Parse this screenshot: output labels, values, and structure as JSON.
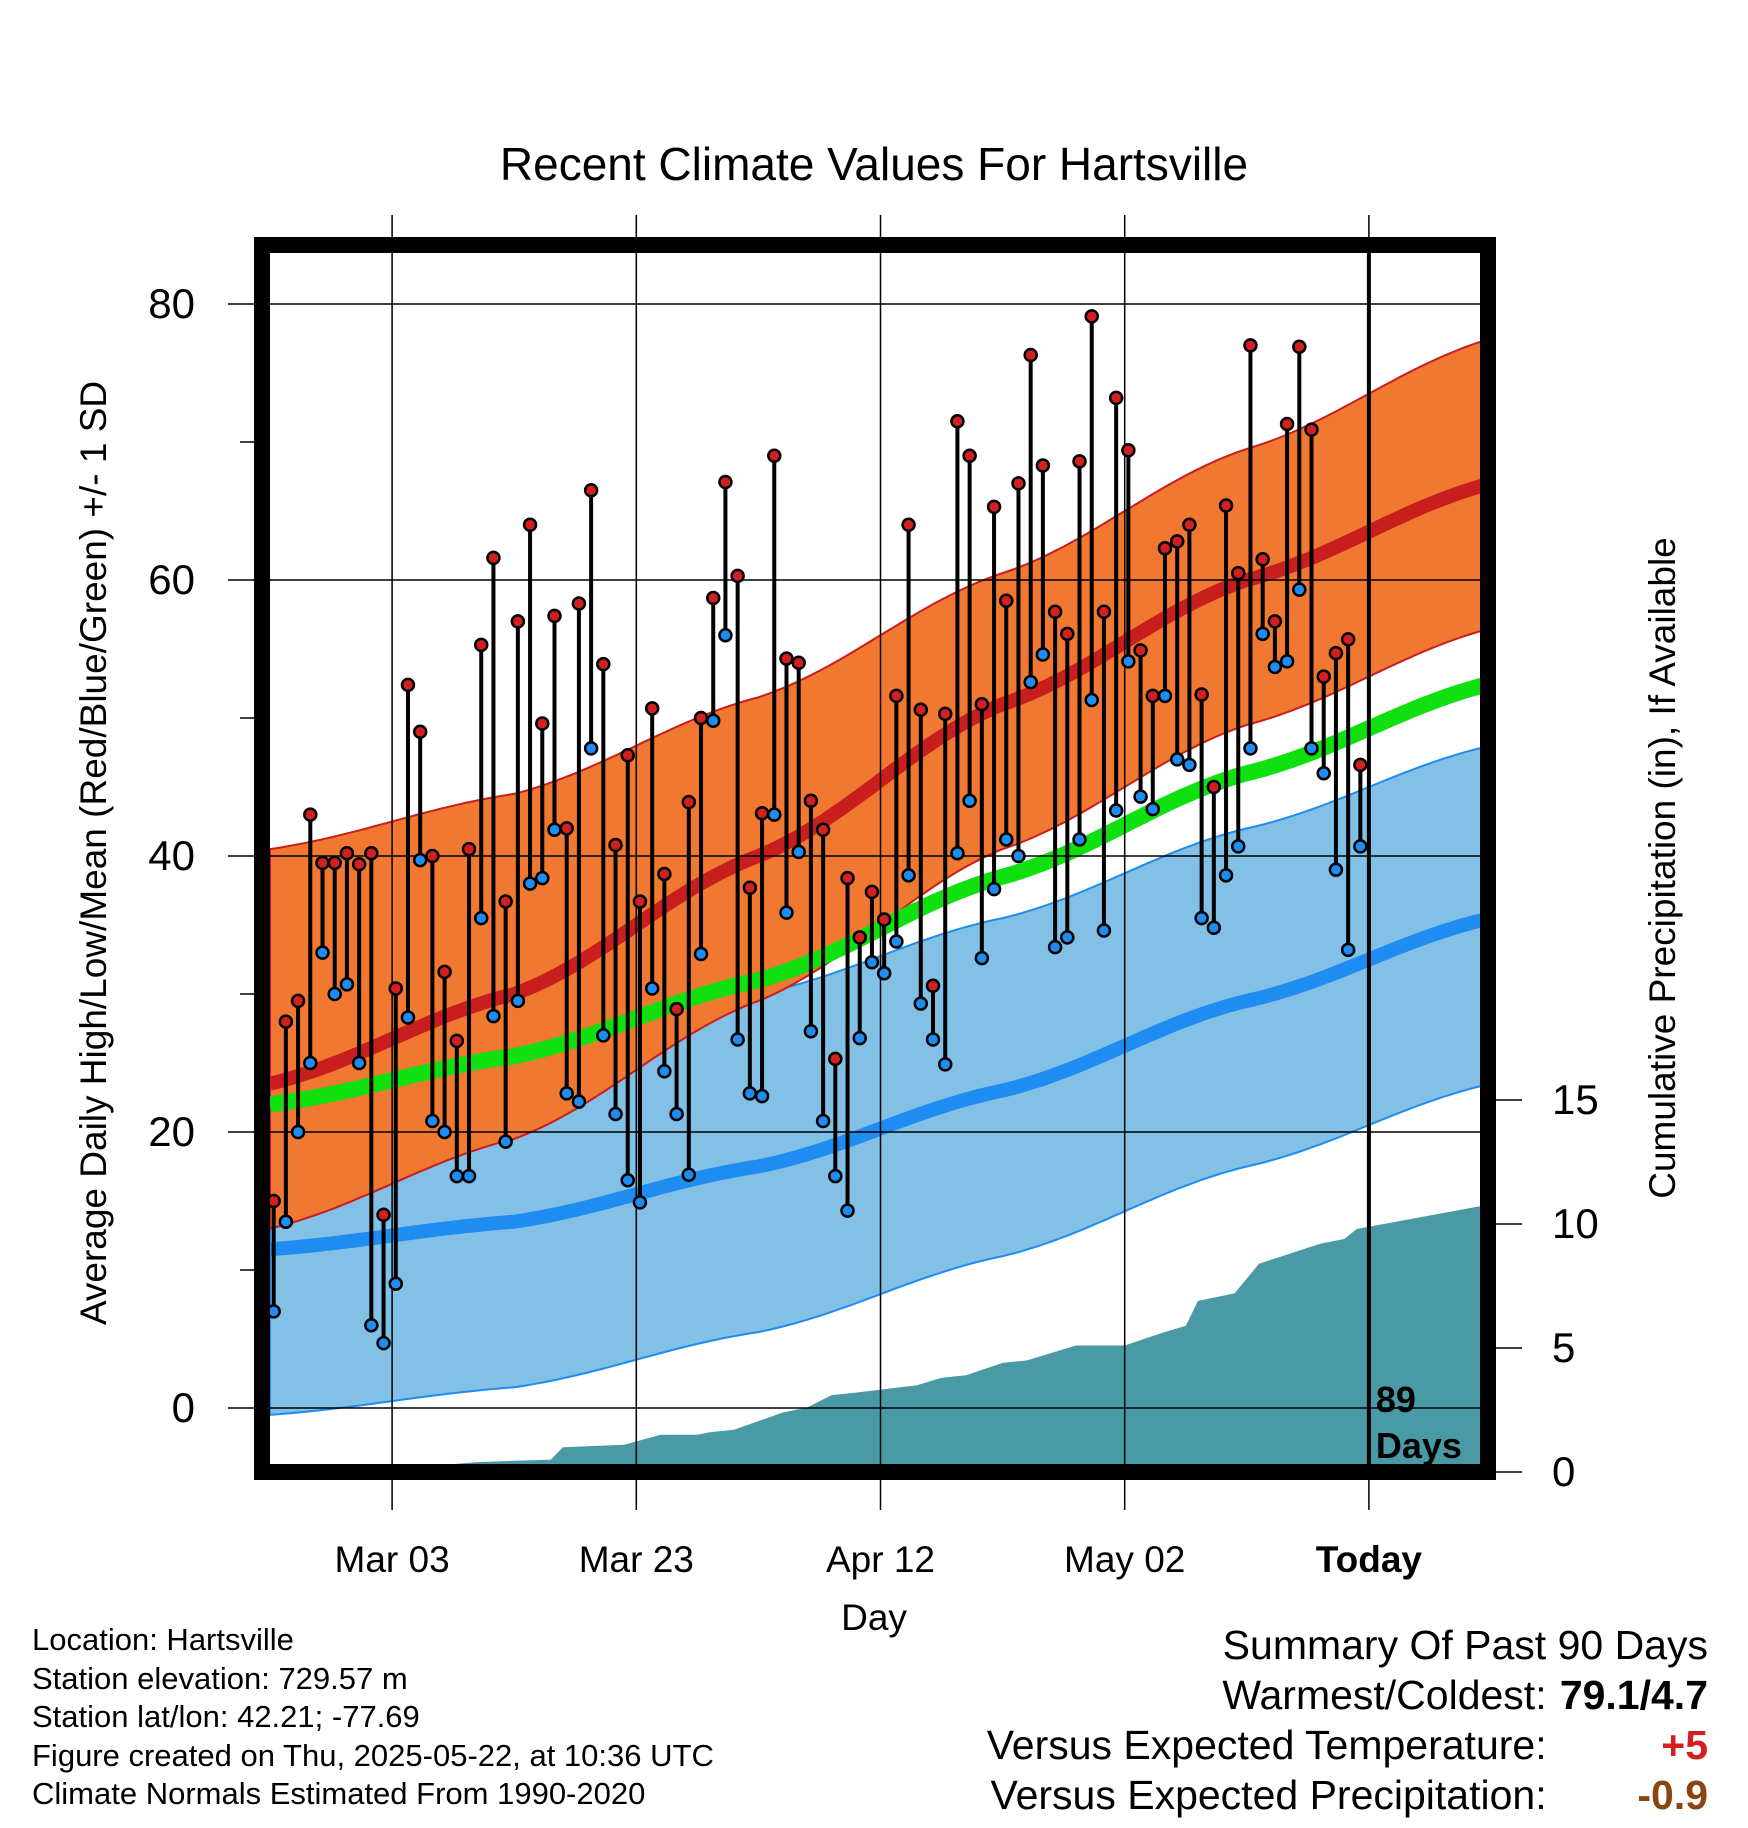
{
  "chart_data": {
    "type": "line",
    "title": "Recent Climate Values For Hartsville",
    "xlabel": "Day",
    "ylabel": "Average Daily High/Low/Mean (Red/Blue/Green) +/- 1 SD",
    "y2label": "Cumulative Precipitation (in), If Available",
    "ylim": [
      -4.5,
      85
    ],
    "y2lim": [
      0,
      30
    ],
    "xlim": [
      -11,
      89
    ],
    "x_units": "days since start of period (day 79 = Mar 03 offset)",
    "x_tick_labels": [
      {
        "x": 10,
        "label": "Mar 03"
      },
      {
        "x": 30,
        "label": "Mar 23"
      },
      {
        "x": 50,
        "label": "Apr 12"
      },
      {
        "x": 70,
        "label": "May 02"
      },
      {
        "x": 90,
        "label": "Today"
      }
    ],
    "y_ticks": [
      0,
      20,
      40,
      60,
      80
    ],
    "y2_ticks": [
      0,
      5,
      10,
      15
    ],
    "grid": true,
    "today_marker": {
      "label_line1": "89",
      "label_line2": "Days"
    },
    "normals": {
      "x": [
        0,
        20,
        40,
        60,
        80,
        100
      ],
      "high_mean": [
        23.5,
        30,
        40,
        51,
        60,
        67
      ],
      "high_upper": [
        32,
        36,
        43,
        52,
        61,
        69
      ],
      "low_mean": [
        11.5,
        13.5,
        17.5,
        23,
        29.5,
        35.5
      ],
      "mean": [
        22,
        25.5,
        31,
        38.5,
        46,
        52.5
      ]
    },
    "observed": {
      "high": [
        15,
        28,
        29.5,
        43,
        39.5,
        39.5,
        40.2,
        39.4,
        40.2,
        14,
        30.4,
        52.4,
        49,
        40,
        31.6,
        26.6,
        40.5,
        55.3,
        61.6,
        36.7,
        57,
        64,
        49.6,
        57.4,
        42,
        58.3,
        66.5,
        53.9,
        40.8,
        47.3,
        36.7,
        50.7,
        38.7,
        28.9,
        43.9,
        50,
        58.7,
        67.1,
        60.3,
        37.7,
        43.1,
        69,
        54.3,
        54,
        44,
        41.9,
        25.3,
        38.4,
        34.1,
        37.4,
        35.4,
        51.6,
        64,
        50.6,
        30.6,
        50.3,
        71.5,
        69,
        51,
        65.3,
        58.5,
        67,
        76.3,
        68.3,
        57.7,
        56.1,
        68.6,
        79.1,
        57.7,
        73.2,
        69.4,
        54.9,
        51.6,
        62.3,
        62.8,
        64,
        51.7,
        45,
        65.4,
        60.5,
        77,
        61.5,
        57,
        71.3,
        76.9,
        70.9,
        53,
        54.7,
        55.7,
        46.6
      ],
      "low": [
        7,
        13.5,
        20,
        25,
        33,
        30,
        30.7,
        25,
        6,
        4.7,
        9,
        28.3,
        39.7,
        20.8,
        20,
        16.8,
        16.8,
        35.5,
        28.4,
        19.3,
        29.5,
        38,
        38.4,
        41.9,
        22.8,
        22.2,
        47.8,
        27,
        21.3,
        16.5,
        14.9,
        30.4,
        24.4,
        21.3,
        16.9,
        32.9,
        49.8,
        56,
        26.7,
        22.8,
        22.6,
        43,
        35.9,
        40.3,
        27.3,
        20.8,
        16.8,
        14.3,
        26.8,
        32.3,
        31.5,
        33.8,
        38.6,
        29.3,
        26.7,
        24.9,
        40.2,
        44,
        32.6,
        37.6,
        41.2,
        40,
        52.6,
        54.6,
        33.4,
        34.1,
        41.2,
        51.3,
        34.6,
        43.3,
        54.1,
        44.3,
        43.4,
        51.6,
        47,
        46.6,
        35.5,
        34.8,
        38.6,
        40.7,
        47.8,
        56.1,
        53.7,
        54.1,
        59.3,
        47.8,
        46,
        39,
        33.2,
        40.7
      ]
    },
    "precip_cumulative": {
      "x": [
        0,
        5,
        8,
        12,
        17,
        23,
        24,
        29,
        32,
        35,
        36,
        38,
        42,
        44,
        46,
        48,
        53,
        55,
        57,
        60,
        62,
        66,
        70,
        73,
        75,
        76,
        79,
        81,
        86,
        88,
        89,
        100
      ],
      "values": [
        0,
        0.1,
        0.1,
        0.2,
        0.4,
        0.5,
        1,
        1.1,
        1.5,
        1.5,
        1.6,
        1.7,
        2.4,
        2.6,
        3.1,
        3.2,
        3.5,
        3.8,
        3.9,
        4.4,
        4.5,
        5.1,
        5.1,
        5.6,
        5.9,
        6.9,
        7.2,
        8.4,
        9.2,
        9.4,
        9.8,
        10.8
      ]
    }
  },
  "info": {
    "location": "Location: Hartsville",
    "elevation": "Station elevation: 729.57 m",
    "latlon": "Station lat/lon: 42.21; -77.69",
    "created": "Figure created on Thu, 2025-05-22, at 10:36 UTC",
    "normals": "Climate Normals Estimated From 1990-2020"
  },
  "summary": {
    "heading": "Summary Of Past 90 Days",
    "warmest_label": "Warmest/Coldest:",
    "warmest_value": "79.1/4.7",
    "temp_label": "Versus Expected Temperature:",
    "temp_value": "+5",
    "temp_color": "#d22020",
    "precip_label": "Versus Expected Precipitation:",
    "precip_value": "-0.9",
    "precip_color": "#8b4513"
  },
  "colors": {
    "high_band": "#f07830",
    "high_line": "#c81e1e",
    "low_band": "#82c0e6",
    "low_line": "#1e8cf0",
    "mean_line": "#10e010",
    "precip_fill": "#4a9aa5",
    "dot_high": "#d22020",
    "dot_low": "#1e8cf0"
  }
}
